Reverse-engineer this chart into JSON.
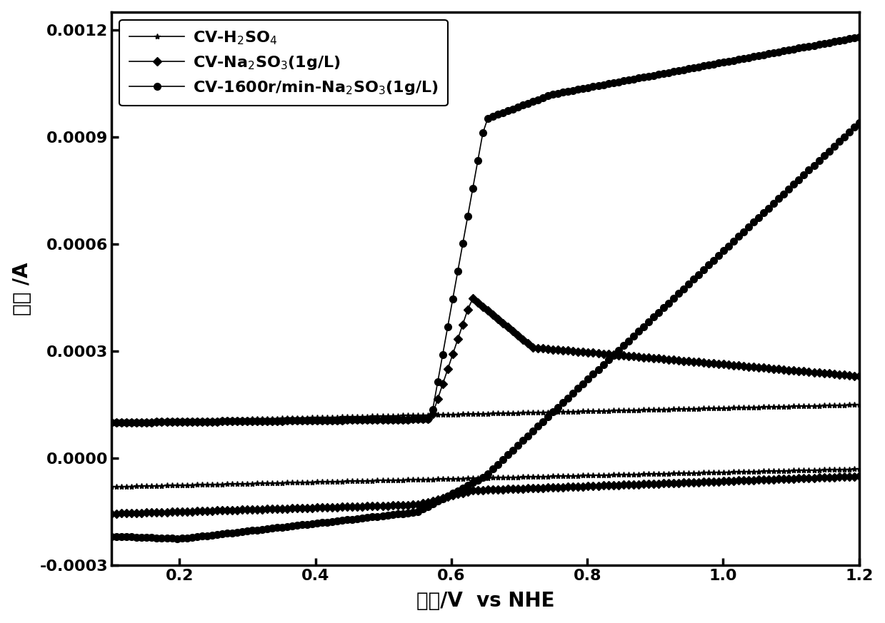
{
  "xlabel": "电压/V  vs NHE",
  "ylabel": "电流 /A",
  "xlim": [
    0.1,
    1.2
  ],
  "ylim": [
    -0.0003,
    0.00125
  ],
  "yticks": [
    -0.0003,
    0.0,
    0.0003,
    0.0006,
    0.0009,
    0.0012
  ],
  "xticks": [
    0.2,
    0.4,
    0.6,
    0.8,
    1.0,
    1.2
  ],
  "background_color": "#ffffff"
}
